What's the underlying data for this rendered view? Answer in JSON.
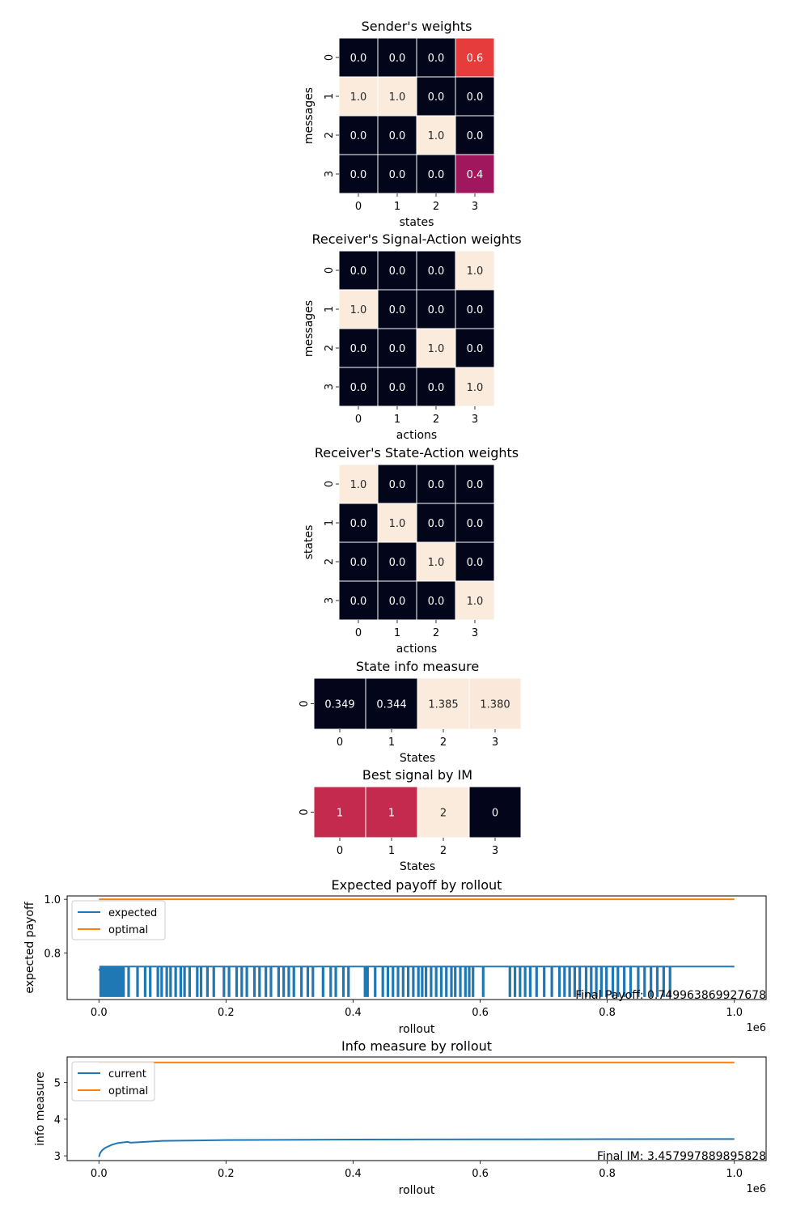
{
  "chart_data": [
    {
      "type": "heatmap",
      "title": "Sender's weights",
      "xlabel": "states",
      "ylabel": "messages",
      "xticks": [
        "0",
        "1",
        "2",
        "3"
      ],
      "yticks": [
        "0",
        "1",
        "2",
        "3"
      ],
      "values": [
        [
          0.0,
          0.0,
          0.0,
          0.6
        ],
        [
          1.0,
          1.0,
          0.0,
          0.0
        ],
        [
          0.0,
          0.0,
          1.0,
          0.0
        ],
        [
          0.0,
          0.0,
          0.0,
          0.4
        ]
      ],
      "labels": [
        [
          "0.0",
          "0.0",
          "0.0",
          "0.6"
        ],
        [
          "1.0",
          "1.0",
          "0.0",
          "0.0"
        ],
        [
          "0.0",
          "0.0",
          "1.0",
          "0.0"
        ],
        [
          "0.0",
          "0.0",
          "0.0",
          "0.4"
        ]
      ],
      "vmin": 0,
      "vmax": 1
    },
    {
      "type": "heatmap",
      "title": "Receiver's Signal-Action weights",
      "xlabel": "actions",
      "ylabel": "messages",
      "xticks": [
        "0",
        "1",
        "2",
        "3"
      ],
      "yticks": [
        "0",
        "1",
        "2",
        "3"
      ],
      "values": [
        [
          0.0,
          0.0,
          0.0,
          1.0
        ],
        [
          1.0,
          0.0,
          0.0,
          0.0
        ],
        [
          0.0,
          0.0,
          1.0,
          0.0
        ],
        [
          0.0,
          0.0,
          0.0,
          1.0
        ]
      ],
      "labels": [
        [
          "0.0",
          "0.0",
          "0.0",
          "1.0"
        ],
        [
          "1.0",
          "0.0",
          "0.0",
          "0.0"
        ],
        [
          "0.0",
          "0.0",
          "1.0",
          "0.0"
        ],
        [
          "0.0",
          "0.0",
          "0.0",
          "1.0"
        ]
      ],
      "vmin": 0,
      "vmax": 1
    },
    {
      "type": "heatmap",
      "title": "Receiver's State-Action weights",
      "xlabel": "actions",
      "ylabel": "states",
      "xticks": [
        "0",
        "1",
        "2",
        "3"
      ],
      "yticks": [
        "0",
        "1",
        "2",
        "3"
      ],
      "values": [
        [
          1.0,
          0.0,
          0.0,
          0.0
        ],
        [
          0.0,
          1.0,
          0.0,
          0.0
        ],
        [
          0.0,
          0.0,
          1.0,
          0.0
        ],
        [
          0.0,
          0.0,
          0.0,
          1.0
        ]
      ],
      "labels": [
        [
          "1.0",
          "0.0",
          "0.0",
          "0.0"
        ],
        [
          "0.0",
          "1.0",
          "0.0",
          "0.0"
        ],
        [
          "0.0",
          "0.0",
          "1.0",
          "0.0"
        ],
        [
          "0.0",
          "0.0",
          "0.0",
          "1.0"
        ]
      ],
      "vmin": 0,
      "vmax": 1
    },
    {
      "type": "heatmap",
      "title": "State info measure",
      "xlabel": "States",
      "ylabel": "",
      "xticks": [
        "0",
        "1",
        "2",
        "3"
      ],
      "yticks": [
        "0"
      ],
      "values": [
        [
          0.349,
          0.344,
          1.385,
          1.38
        ]
      ],
      "labels": [
        [
          "0.349",
          "0.344",
          "1.385",
          "1.380"
        ]
      ],
      "vmin": 0.344,
      "vmax": 1.385
    },
    {
      "type": "heatmap",
      "title": "Best signal by IM",
      "xlabel": "States",
      "ylabel": "",
      "xticks": [
        "0",
        "1",
        "2",
        "3"
      ],
      "yticks": [
        "0"
      ],
      "values": [
        [
          1,
          1,
          2,
          0
        ]
      ],
      "labels": [
        [
          "1",
          "1",
          "2",
          "0"
        ]
      ],
      "vmin": 0,
      "vmax": 2
    },
    {
      "type": "line",
      "title": "Expected payoff by rollout",
      "xlabel": "rollout",
      "ylabel": "expected payoff",
      "x_range": [
        0,
        1000000
      ],
      "xlim": [
        -50000,
        1050000
      ],
      "ylim": [
        0.6275,
        1.0125
      ],
      "xticks": [
        0,
        200000,
        400000,
        600000,
        800000,
        1000000
      ],
      "xtick_labels": [
        "0.0",
        "0.2",
        "0.4",
        "0.6",
        "0.8",
        "1.0"
      ],
      "x_offset_label": "1e6",
      "yticks": [
        0.8,
        1.0
      ],
      "ytick_labels": [
        "0.8",
        "1.0"
      ],
      "legend_position": "upper-left",
      "series": [
        {
          "name": "expected",
          "color": "#1f77b4",
          "baseline": 0.75,
          "start": 0.735,
          "dip_value": 0.64,
          "dips": [
            2000,
            6000,
            10000,
            14000,
            18000,
            22000,
            26000,
            30000,
            34000,
            38000,
            46000,
            60000,
            72000,
            80000,
            92000,
            98000,
            106000,
            112000,
            120000,
            128000,
            134000,
            142000,
            154000,
            160000,
            170000,
            180000,
            196000,
            204000,
            216000,
            224000,
            232000,
            244000,
            252000,
            262000,
            270000,
            282000,
            290000,
            298000,
            306000,
            318000,
            328000,
            336000,
            352000,
            364000,
            372000,
            384000,
            392000,
            418000,
            422000,
            434000,
            446000,
            454000,
            462000,
            470000,
            478000,
            486000,
            494000,
            502000,
            508000,
            514000,
            522000,
            530000,
            538000,
            546000,
            554000,
            560000,
            568000,
            576000,
            582000,
            588000,
            604000,
            646000,
            654000,
            662000,
            670000,
            678000,
            688000,
            700000,
            712000,
            724000,
            732000,
            740000,
            748000,
            756000,
            766000,
            774000,
            782000,
            790000,
            798000,
            808000,
            816000,
            826000,
            836000,
            848000,
            858000,
            868000,
            878000,
            888000,
            898000
          ]
        },
        {
          "name": "optimal",
          "color": "#ff7f0e",
          "value": 1.0
        }
      ],
      "annotation": "Final Payoff: 0.749963869927678"
    },
    {
      "type": "line",
      "title": "Info measure by rollout",
      "xlabel": "rollout",
      "ylabel": "info measure",
      "x_range": [
        0,
        1000000
      ],
      "xlim": [
        -50000,
        1050000
      ],
      "ylim": [
        2.87,
        5.7
      ],
      "xticks": [
        0,
        200000,
        400000,
        600000,
        800000,
        1000000
      ],
      "xtick_labels": [
        "0.0",
        "0.2",
        "0.4",
        "0.6",
        "0.8",
        "1.0"
      ],
      "x_offset_label": "1e6",
      "yticks": [
        3,
        4,
        5
      ],
      "ytick_labels": [
        "3",
        "4",
        "5"
      ],
      "legend_position": "upper-left",
      "series": [
        {
          "name": "current",
          "color": "#1f77b4",
          "points": [
            [
              0,
              2.97
            ],
            [
              2000,
              3.08
            ],
            [
              5000,
              3.15
            ],
            [
              10000,
              3.22
            ],
            [
              20000,
              3.3
            ],
            [
              30000,
              3.35
            ],
            [
              45000,
              3.38
            ],
            [
              50000,
              3.36
            ],
            [
              100000,
              3.41
            ],
            [
              200000,
              3.43
            ],
            [
              400000,
              3.445
            ],
            [
              600000,
              3.45
            ],
            [
              800000,
              3.455
            ],
            [
              1000000,
              3.458
            ]
          ]
        },
        {
          "name": "optimal",
          "color": "#ff7f0e",
          "value": 5.55
        }
      ],
      "annotation": "Final IM: 3.457997889895828"
    }
  ]
}
